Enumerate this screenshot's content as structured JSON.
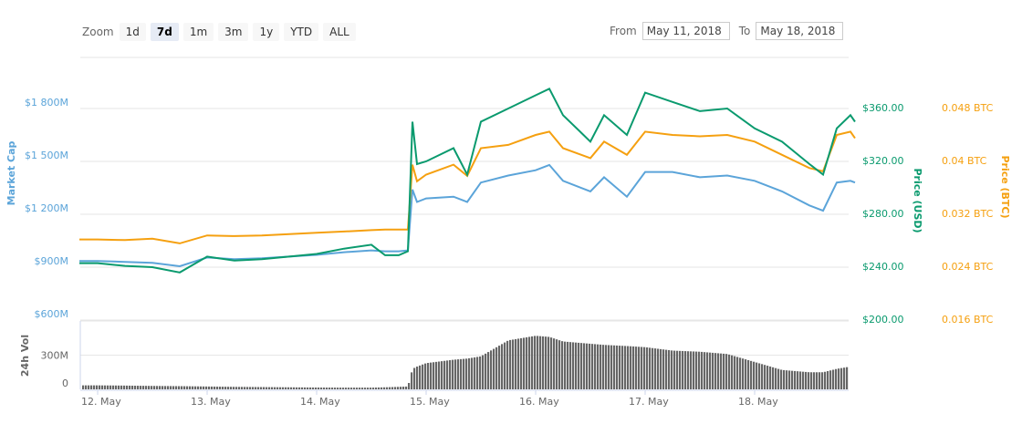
{
  "zoom": {
    "label": "Zoom",
    "buttons": [
      "1d",
      "7d",
      "1m",
      "3m",
      "1y",
      "YTD",
      "ALL"
    ],
    "selected": "7d"
  },
  "range": {
    "from_label": "From",
    "from": "May 11, 2018",
    "to_label": "To",
    "to": "May 18, 2018"
  },
  "chart_data": {
    "type": "line",
    "x_ticks": [
      "12. May",
      "13. May",
      "14. May",
      "15. May",
      "16. May",
      "17. May",
      "18. May"
    ],
    "axes": {
      "market_cap": {
        "title": "Market Cap",
        "ticks": [
          "$600M",
          "$900M",
          "$1 200M",
          "$1 500M",
          "$1 800M"
        ],
        "range": [
          600,
          1800
        ],
        "color": "#5ba4d9"
      },
      "price_usd": {
        "title": "Price (USD)",
        "ticks": [
          "$200.00",
          "$240.00",
          "$280.00",
          "$320.00",
          "$360.00"
        ],
        "range": [
          200,
          360
        ],
        "color": "#0a9a6e"
      },
      "price_btc": {
        "title": "Price (BTC)",
        "ticks": [
          "0.016 BTC",
          "0.024 BTC",
          "0.032 BTC",
          "0.04 BTC",
          "0.048 BTC"
        ],
        "range": [
          0.016,
          0.048
        ],
        "color": "#f5a010"
      },
      "volume": {
        "title": "24h Vol",
        "ticks": [
          "0",
          "300M"
        ],
        "range": [
          0,
          600
        ],
        "color": "#666666"
      }
    },
    "x": [
      "2018-05-11T20:00",
      "2018-05-12T00:00",
      "2018-05-12T06:00",
      "2018-05-12T12:00",
      "2018-05-12T18:00",
      "2018-05-13T00:00",
      "2018-05-13T06:00",
      "2018-05-13T12:00",
      "2018-05-13T18:00",
      "2018-05-14T00:00",
      "2018-05-14T06:00",
      "2018-05-14T12:00",
      "2018-05-14T15:00",
      "2018-05-14T18:00",
      "2018-05-14T20:00",
      "2018-05-14T21:00",
      "2018-05-14T22:00",
      "2018-05-15T00:00",
      "2018-05-15T06:00",
      "2018-05-15T09:00",
      "2018-05-15T12:00",
      "2018-05-15T18:00",
      "2018-05-16T00:00",
      "2018-05-16T03:00",
      "2018-05-16T06:00",
      "2018-05-16T12:00",
      "2018-05-16T15:00",
      "2018-05-16T20:00",
      "2018-05-17T00:00",
      "2018-05-17T06:00",
      "2018-05-17T12:00",
      "2018-05-17T18:00",
      "2018-05-18T00:00",
      "2018-05-18T06:00",
      "2018-05-18T12:00",
      "2018-05-18T15:00",
      "2018-05-18T18:00",
      "2018-05-18T21:00",
      "2018-05-18T22:00"
    ],
    "series": {
      "price_usd": [
        243,
        243,
        241,
        240,
        236,
        248,
        245,
        246,
        248,
        250,
        254,
        257,
        249,
        249,
        252,
        350,
        318,
        320,
        330,
        310,
        350,
        360,
        370,
        375,
        355,
        335,
        355,
        340,
        372,
        365,
        358,
        360,
        345,
        335,
        318,
        310,
        345,
        355,
        350
      ],
      "market_cap": [
        935,
        935,
        930,
        925,
        905,
        955,
        945,
        950,
        960,
        970,
        985,
        995,
        990,
        990,
        995,
        1340,
        1270,
        1290,
        1300,
        1270,
        1380,
        1420,
        1450,
        1480,
        1390,
        1330,
        1410,
        1300,
        1440,
        1440,
        1410,
        1420,
        1390,
        1330,
        1250,
        1220,
        1380,
        1390,
        1380
      ],
      "price_btc": [
        0.0282,
        0.0282,
        0.0281,
        0.0283,
        0.0276,
        0.0288,
        0.0287,
        0.0288,
        0.029,
        0.0292,
        0.0294,
        0.0296,
        0.0297,
        0.0297,
        0.0297,
        0.0395,
        0.037,
        0.038,
        0.0395,
        0.0378,
        0.042,
        0.0425,
        0.044,
        0.0445,
        0.042,
        0.0405,
        0.043,
        0.041,
        0.0445,
        0.044,
        0.0438,
        0.044,
        0.043,
        0.041,
        0.039,
        0.0385,
        0.044,
        0.0445,
        0.0435
      ],
      "volume": [
        35,
        35,
        33,
        30,
        28,
        25,
        22,
        20,
        18,
        16,
        15,
        15,
        18,
        22,
        25,
        180,
        200,
        230,
        260,
        270,
        290,
        430,
        470,
        460,
        420,
        400,
        390,
        380,
        370,
        340,
        330,
        310,
        240,
        170,
        150,
        150,
        180,
        200,
        200
      ]
    }
  }
}
